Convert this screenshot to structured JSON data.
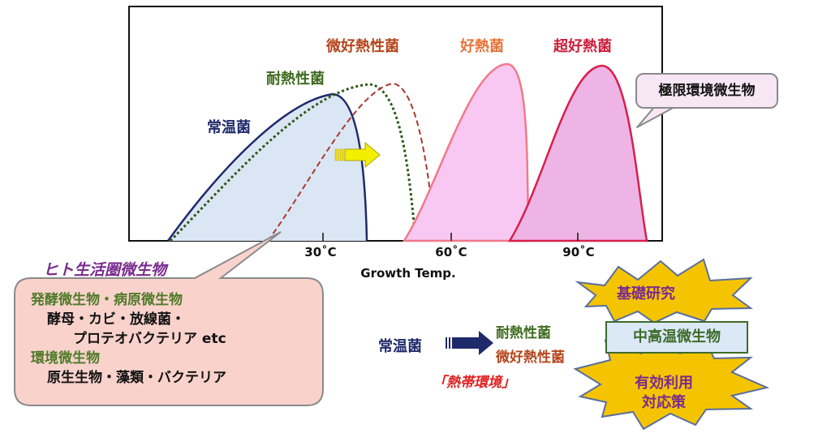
{
  "chart": {
    "x_axis_label": "Growth Temp.",
    "ticks": [
      "30˚C",
      "60˚C",
      "90˚C"
    ],
    "curves": [
      {
        "name": "常温菌",
        "color": "#1f2a6b"
      },
      {
        "name": "耐熱性菌",
        "color": "#3f6b1f"
      },
      {
        "name": "微好熱性菌",
        "color": "#b5461c"
      },
      {
        "name": "好熱菌",
        "color": "#e8733a"
      },
      {
        "name": "超好熱菌",
        "color": "#cc1f3a"
      }
    ]
  },
  "callouts": {
    "extreme": "極限環境微生物",
    "human_sphere_title": "ヒト生活圏微生物",
    "human_sphere_items": [
      {
        "text": "発酵微生物・病原微生物",
        "style": "h"
      },
      {
        "text": "酵母・カビ・放線菌・",
        "style": "i1"
      },
      {
        "text": "プロテオバクテリア etc",
        "style": "i2"
      },
      {
        "text": "環境微生物",
        "style": "h"
      },
      {
        "text": "原生生物・藻類・バクテリア",
        "style": "i1"
      }
    ]
  },
  "flow": {
    "source": "常温菌",
    "targets": [
      "耐熱性菌",
      "微好熱性菌"
    ],
    "note": "「熱帯環境」"
  },
  "right_panel": {
    "star_top": "基礎研究",
    "box": "中高温微生物",
    "star_bottom_line1": "有効利用",
    "star_bottom_line2": "対応策"
  }
}
